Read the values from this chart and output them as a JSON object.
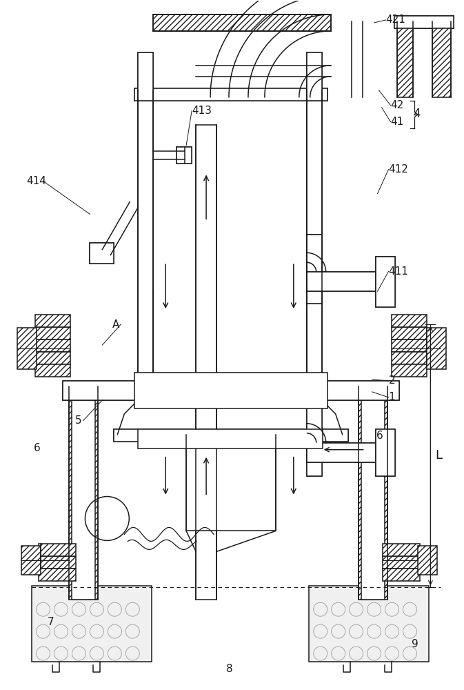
{
  "bg_color": "#ffffff",
  "line_color": "#1a1a1a",
  "fig_width": 6.73,
  "fig_height": 10.0
}
